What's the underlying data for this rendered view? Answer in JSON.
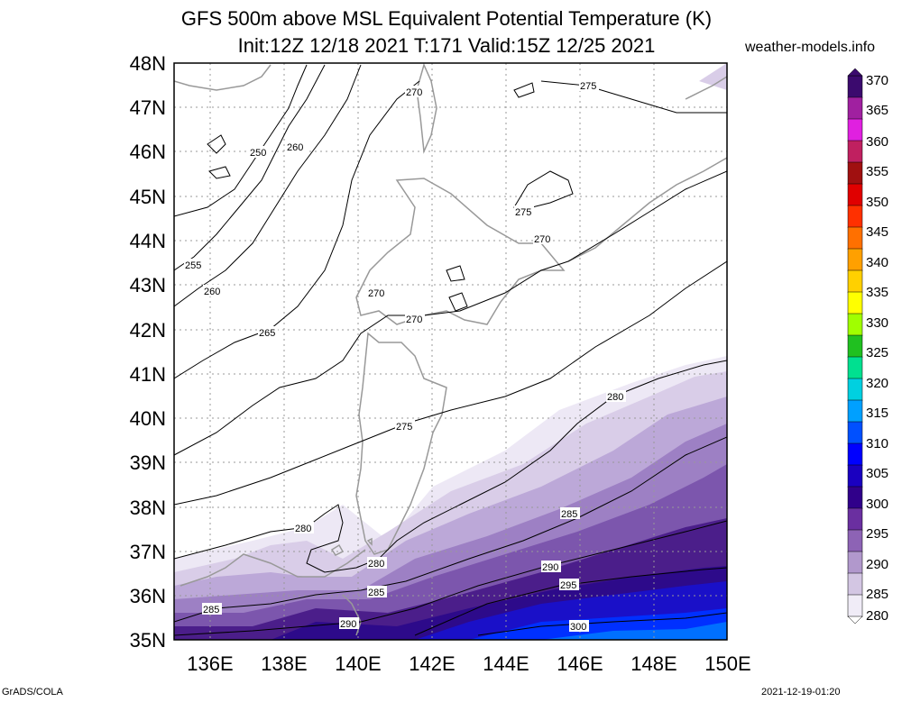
{
  "title": {
    "line1": "GFS 500m above MSL Equivalent Potential Temperature (K)",
    "line2": "Init:12Z 12/18 2021 T:171 Valid:15Z 12/25 2021",
    "site": "weather-models.info"
  },
  "footer": {
    "left": "GrADS/COLA",
    "right": "2021-12-19-01:20"
  },
  "map": {
    "lat_labels": [
      "48N",
      "47N",
      "46N",
      "45N",
      "44N",
      "43N",
      "42N",
      "41N",
      "40N",
      "39N",
      "38N",
      "37N",
      "36N",
      "35N"
    ],
    "lon_labels": [
      "136E",
      "138E",
      "140E",
      "142E",
      "144E",
      "146E",
      "148E",
      "150E"
    ],
    "contour_labels": [
      "250",
      "255",
      "260",
      "260",
      "265",
      "270",
      "270",
      "270",
      "270",
      "275",
      "275",
      "275",
      "280",
      "280",
      "280",
      "285",
      "285",
      "285",
      "290",
      "290",
      "295",
      "300"
    ]
  },
  "colorbar": {
    "labels": [
      "370",
      "365",
      "360",
      "355",
      "350",
      "345",
      "340",
      "335",
      "330",
      "325",
      "320",
      "315",
      "310",
      "305",
      "300",
      "295",
      "290",
      "285",
      "280"
    ],
    "colors": [
      "#3b0a6e",
      "#a020a0",
      "#e020e0",
      "#c02060",
      "#a01010",
      "#e00000",
      "#ff3000",
      "#ff7000",
      "#ffa000",
      "#ffd000",
      "#ffff00",
      "#a0ff00",
      "#20c020",
      "#00e090",
      "#00d0e0",
      "#00a0ff",
      "#0050ff",
      "#0000ff",
      "#1a00c0",
      "#30008a",
      "#6a2fa0",
      "#8d63b5",
      "#b198cc",
      "#d3c6e3",
      "#f0ecf7"
    ]
  }
}
